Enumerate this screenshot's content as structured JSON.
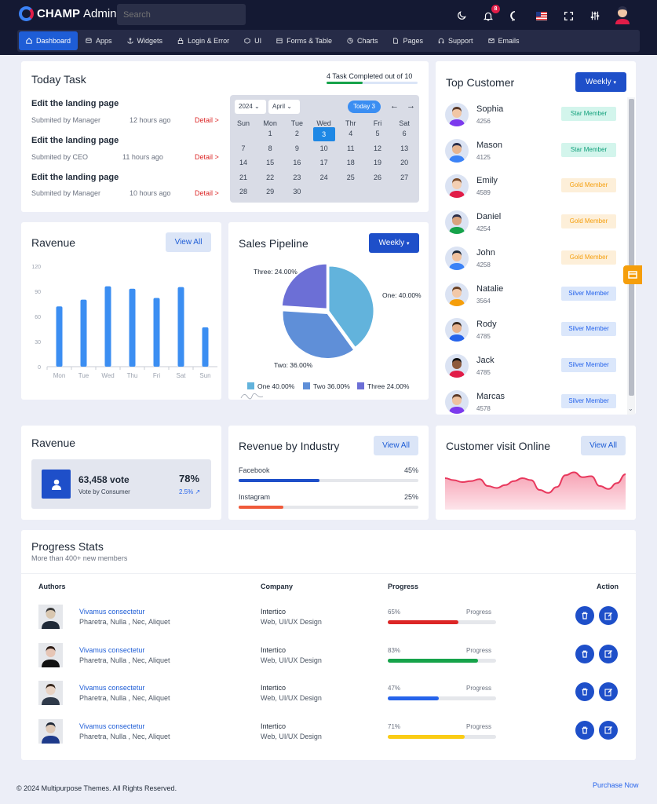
{
  "header": {
    "brand_bold": "CHAMP",
    "brand_rest": "Admin",
    "search_placeholder": "Search",
    "notif_count": "8"
  },
  "nav": [
    "Dashboard",
    "Apps",
    "Widgets",
    "Login & Error",
    "UI",
    "Forms & Table",
    "Charts",
    "Pages",
    "Support",
    "Emails"
  ],
  "today_task": {
    "title": "Today Task",
    "progress_label": "4 Task Completed out of 10",
    "progress": 0.4,
    "tasks": [
      {
        "title": "Edit the landing page",
        "by": "Submited by Manager",
        "time": "12 hours ago",
        "detail": "Detail >"
      },
      {
        "title": "Edit the landing page",
        "by": "Submited by CEO",
        "time": "11 hours ago",
        "detail": "Detail >"
      },
      {
        "title": "Edit the landing page",
        "by": "Submited by Manager",
        "time": "10 hours ago",
        "detail": "Detail >"
      }
    ],
    "calendar": {
      "year": "2024",
      "month": "April",
      "today_btn": "Today 3",
      "prev": "←",
      "next": "→",
      "days": [
        "Sun",
        "Mon",
        "Tue",
        "Wed",
        "Thr",
        "Fri",
        "Sat"
      ],
      "first_weekday": 1,
      "num_days": 30,
      "selected": 3
    }
  },
  "top_customer": {
    "title": "Top Customer",
    "button": "Weekly",
    "customers": [
      {
        "name": "Sophia",
        "id": "4256",
        "tag": "Star Member",
        "tier": "star"
      },
      {
        "name": "Mason",
        "id": "4125",
        "tag": "Star Member",
        "tier": "star"
      },
      {
        "name": "Emily",
        "id": "4589",
        "tag": "Gold Member",
        "tier": "gold"
      },
      {
        "name": "Daniel",
        "id": "4254",
        "tag": "Gold Member",
        "tier": "gold"
      },
      {
        "name": "John",
        "id": "4258",
        "tag": "Gold Member",
        "tier": "gold"
      },
      {
        "name": "Natalie",
        "id": "3564",
        "tag": "Silver Member",
        "tier": "silver"
      },
      {
        "name": "Rody",
        "id": "4785",
        "tag": "Silver Member",
        "tier": "silver"
      },
      {
        "name": "Jack",
        "id": "4785",
        "tag": "Silver Member",
        "tier": "silver"
      },
      {
        "name": "Marcas",
        "id": "4578",
        "tag": "Silver Member",
        "tier": "silver"
      }
    ]
  },
  "revenue": {
    "title": "Ravenue",
    "button": "View All"
  },
  "sales": {
    "title": "Sales Pipeline",
    "button": "Weekly"
  },
  "revenue_vote": {
    "title": "Ravenue",
    "votes": "63,458 vote",
    "label": "Vote by Consumer",
    "pct": "78%",
    "change": "2.5%"
  },
  "industry": {
    "title": "Revenue by Industry",
    "button": "View All",
    "items": [
      {
        "name": "Facebook",
        "pct_label": "45%",
        "value": 0.45,
        "color": "#1e4fc9"
      },
      {
        "name": "Instagram",
        "pct_label": "25%",
        "value": 0.25,
        "color": "#f05a3a"
      }
    ]
  },
  "visit": {
    "title": "Customer visit Online",
    "button": "View All"
  },
  "progress_stats": {
    "title": "Progress Stats",
    "subtitle": "More than 400+ new members",
    "headers": {
      "authors": "Authors",
      "company": "Company",
      "progress": "Progress",
      "action": "Action"
    },
    "rows": [
      {
        "name": "Vivamus consectetur",
        "tags": "Pharetra, Nulla , Nec, Aliquet",
        "company": "Intertico",
        "role": "Web, UI/UX Design",
        "pct": "65%",
        "value": 0.65,
        "label": "Progress",
        "color": "#dc2626"
      },
      {
        "name": "Vivamus consectetur",
        "tags": "Pharetra, Nulla , Nec, Aliquet",
        "company": "Intertico",
        "role": "Web, UI/UX Design",
        "pct": "83%",
        "value": 0.83,
        "label": "Progress",
        "color": "#16a34a"
      },
      {
        "name": "Vivamus consectetur",
        "tags": "Pharetra, Nulla , Nec, Aliquet",
        "company": "Intertico",
        "role": "Web, UI/UX Design",
        "pct": "47%",
        "value": 0.47,
        "label": "Progress",
        "color": "#2563eb"
      },
      {
        "name": "Vivamus consectetur",
        "tags": "Pharetra, Nulla , Nec, Aliquet",
        "company": "Intertico",
        "role": "Web, UI/UX Design",
        "pct": "71%",
        "value": 0.71,
        "label": "Progress",
        "color": "#facc15"
      }
    ]
  },
  "footer": {
    "copyright": "© 2024 Multipurpose Themes. All Rights Reserved.",
    "link": "Purchase Now"
  },
  "chart_data": [
    {
      "type": "bar",
      "categories": [
        "Mon",
        "Tue",
        "Wed",
        "Thu",
        "Fri",
        "Sat",
        "Sun"
      ],
      "values": [
        72,
        80,
        96,
        93,
        82,
        95,
        47
      ],
      "ylim": [
        0,
        120
      ],
      "yticks": [
        0,
        30,
        60,
        90,
        120
      ],
      "color": "#3b8ef2"
    },
    {
      "type": "pie",
      "series": [
        {
          "name": "One",
          "value": 40,
          "label": "One: 40.00%",
          "legend": "One 40.00%",
          "color": "#62b3dc"
        },
        {
          "name": "Two",
          "value": 36,
          "label": "Two: 36.00%",
          "legend": "Two 36.00%",
          "color": "#5f8fd8"
        },
        {
          "name": "Three",
          "value": 24,
          "label": "Three: 24.00%",
          "legend": "Three 24.00%",
          "color": "#6c6fd6"
        }
      ]
    },
    {
      "type": "area",
      "values": [
        32,
        30,
        28,
        29,
        31,
        24,
        22,
        25,
        29,
        32,
        30,
        20,
        17,
        23,
        35,
        38,
        33,
        34,
        24,
        21,
        27,
        36
      ],
      "color": "#e8385d"
    }
  ]
}
